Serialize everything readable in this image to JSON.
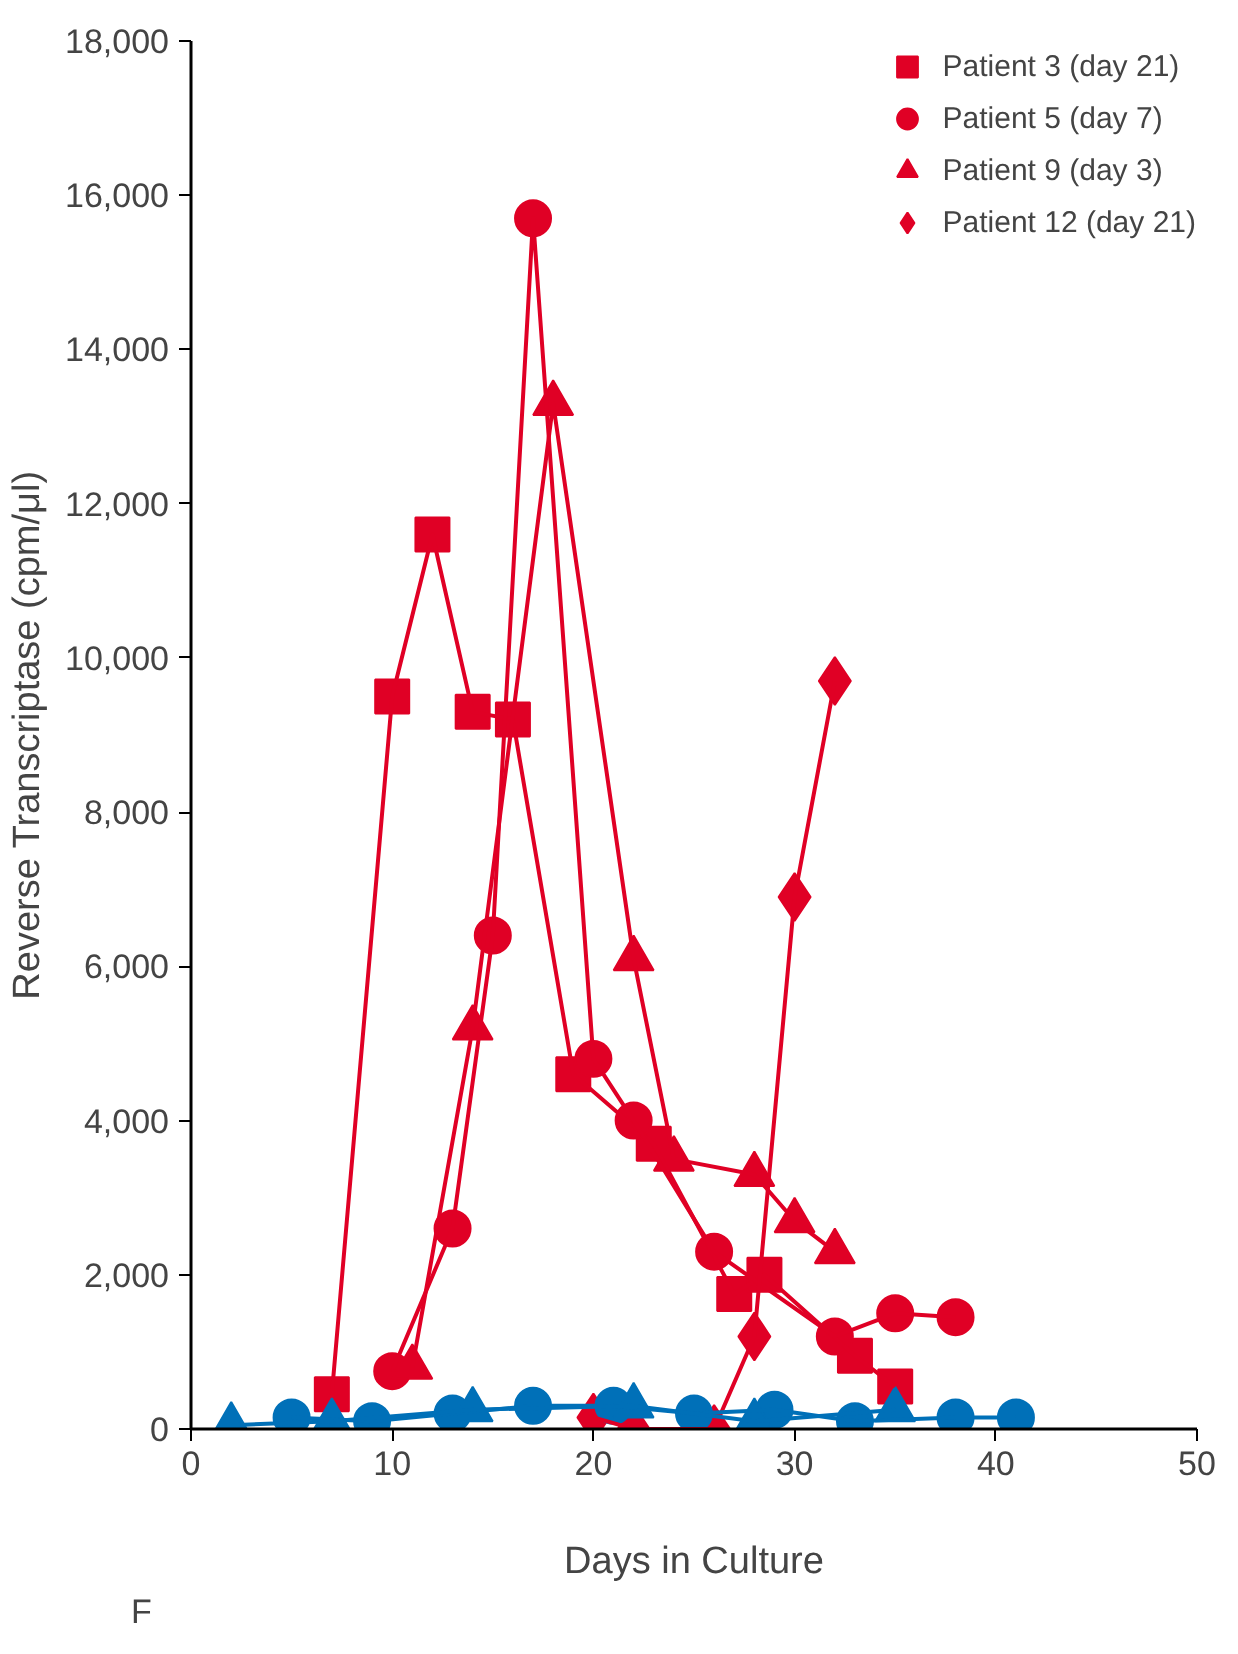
{
  "chart_data": {
    "type": "line",
    "xlabel": "Days in Culture",
    "ylabel": "Reverse Transcriptase (cpm/μl)",
    "xlim": [
      0,
      50
    ],
    "ylim": [
      0,
      18000
    ],
    "xticks": [
      0,
      10,
      20,
      30,
      40,
      50
    ],
    "yticks": [
      {
        "value": 0,
        "label": "0"
      },
      {
        "value": 2000,
        "label": "2,000"
      },
      {
        "value": 4000,
        "label": "4,000"
      },
      {
        "value": 6000,
        "label": "6,000"
      },
      {
        "value": 8000,
        "label": "8,000"
      },
      {
        "value": 10000,
        "label": "10,000"
      },
      {
        "value": 12000,
        "label": "12,000"
      },
      {
        "value": 14000,
        "label": "14,000"
      },
      {
        "value": 16000,
        "label": "16,000"
      },
      {
        "value": 18000,
        "label": "18,000"
      }
    ],
    "grid": false,
    "legend": "top right",
    "annotations": [
      "F"
    ],
    "series": [
      {
        "name": "Patient 3 (day 21)",
        "marker": "square",
        "color": "#e00025",
        "x": [
          7,
          10,
          12,
          14,
          16,
          19,
          23,
          27,
          28.5,
          33,
          35
        ],
        "values": [
          450,
          9500,
          11600,
          9300,
          9200,
          4600,
          3700,
          1750,
          2000,
          950,
          550
        ]
      },
      {
        "name": "Patient 5 (day 7)",
        "marker": "circle",
        "color": "#e00025",
        "x": [
          10,
          13,
          15,
          17,
          20,
          22,
          26,
          32,
          35,
          38
        ],
        "values": [
          750,
          2600,
          6400,
          15700,
          4800,
          4000,
          2300,
          1200,
          1500,
          1450
        ]
      },
      {
        "name": "Patient 9 (day 3)",
        "marker": "triangle",
        "color": "#e00025",
        "x": [
          11,
          14,
          18,
          22,
          24,
          28,
          30,
          32
        ],
        "values": [
          800,
          5200,
          13300,
          6100,
          3500,
          3300,
          2700,
          2300
        ]
      },
      {
        "name": "Patient 12 (day 21)",
        "marker": "diamond",
        "color": "#e00025",
        "x": [
          20,
          22,
          26,
          28,
          30,
          32
        ],
        "values": [
          150,
          0,
          0,
          1200,
          6900,
          9700
        ]
      },
      {
        "marker": "circle",
        "color": "#0070b8",
        "x": [
          5,
          9,
          13,
          17,
          21,
          25,
          29,
          33,
          38,
          41
        ],
        "values": [
          150,
          100,
          200,
          300,
          300,
          200,
          250,
          100,
          150,
          150
        ]
      },
      {
        "marker": "triangle",
        "color": "#0070b8",
        "x": [
          2,
          7,
          14,
          22,
          28,
          35
        ],
        "values": [
          50,
          100,
          250,
          300,
          100,
          250
        ]
      }
    ]
  }
}
